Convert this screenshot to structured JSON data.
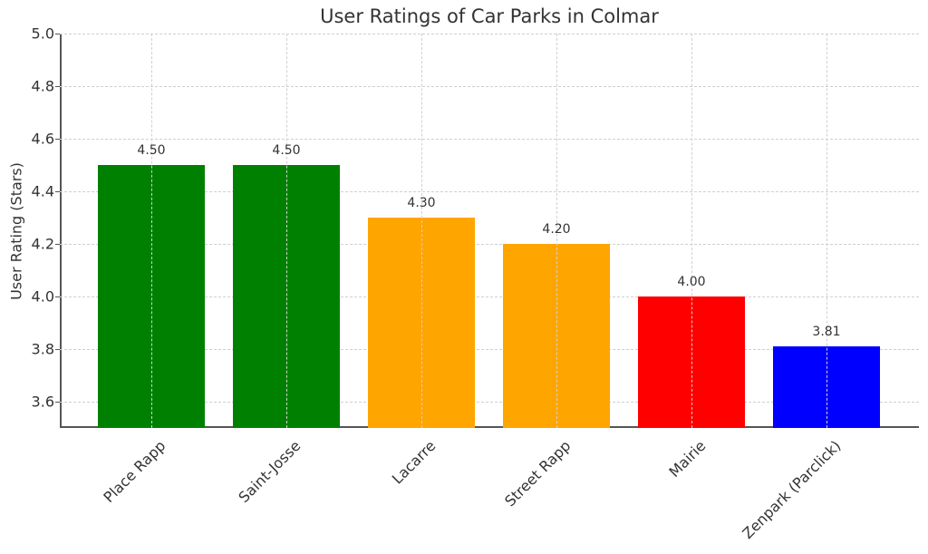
{
  "chart_data": {
    "type": "bar",
    "title": "User Ratings of Car Parks in Colmar",
    "xlabel": "",
    "ylabel": "User Rating (Stars)",
    "categories": [
      "Place Rapp",
      "Saint-Josse",
      "Lacarre",
      "Street Rapp",
      "Mairie",
      "Zenpark (Parclick)"
    ],
    "values": [
      4.5,
      4.5,
      4.3,
      4.2,
      4.0,
      3.81
    ],
    "value_labels": [
      "4.50",
      "4.50",
      "4.30",
      "4.20",
      "4.00",
      "3.81"
    ],
    "colors": [
      "#008000",
      "#008000",
      "#FFA500",
      "#FFA500",
      "#FF0000",
      "#0000FF"
    ],
    "ylim": [
      3.5,
      5.0
    ],
    "yticks": [
      "3.6",
      "3.8",
      "4.0",
      "4.2",
      "4.4",
      "4.6",
      "4.8",
      "5.0"
    ],
    "grid": true,
    "legend": null
  }
}
